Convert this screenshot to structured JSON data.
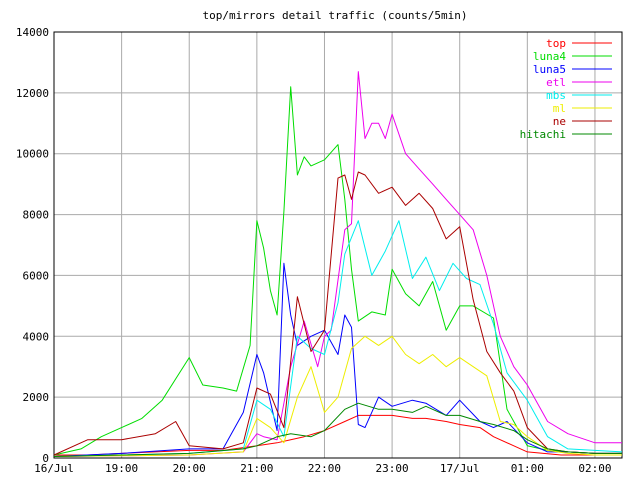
{
  "chart_data": {
    "type": "line",
    "title": "top/mirrors detail traffic (counts/5min)",
    "xlabel": "",
    "ylabel": "",
    "x_ticks": [
      "16/Jul",
      "19:00",
      "20:00",
      "21:00",
      "22:00",
      "23:00",
      "17/Jul",
      "01:00",
      "02:00"
    ],
    "y_ticks": [
      "0",
      "2000",
      "4000",
      "6000",
      "8000",
      "10000",
      "12000",
      "14000"
    ],
    "xlim": [
      18.0,
      26.4
    ],
    "ylim": [
      0,
      14000
    ],
    "grid": true,
    "legend_position": "top-right",
    "series": [
      {
        "name": "top",
        "color": "#ff0000",
        "x": [
          18.0,
          18.5,
          19.0,
          19.5,
          20.0,
          20.5,
          21.0,
          21.3,
          21.5,
          21.7,
          22.0,
          22.3,
          22.5,
          22.8,
          23.0,
          23.3,
          23.5,
          23.8,
          24.0,
          24.3,
          24.5,
          24.8,
          25.0,
          25.5,
          26.0,
          26.4
        ],
        "y": [
          100,
          100,
          150,
          200,
          250,
          250,
          400,
          500,
          600,
          700,
          900,
          1200,
          1400,
          1400,
          1400,
          1300,
          1300,
          1200,
          1100,
          1000,
          700,
          400,
          200,
          100,
          100,
          100
        ]
      },
      {
        "name": "luna4",
        "color": "#00dd00",
        "x": [
          18.0,
          18.4,
          18.7,
          19.0,
          19.3,
          19.6,
          19.8,
          20.0,
          20.2,
          20.5,
          20.7,
          20.9,
          21.0,
          21.1,
          21.2,
          21.3,
          21.4,
          21.5,
          21.6,
          21.7,
          21.8,
          22.0,
          22.2,
          22.3,
          22.4,
          22.5,
          22.7,
          22.9,
          23.0,
          23.2,
          23.4,
          23.6,
          23.8,
          24.0,
          24.2,
          24.5,
          24.7,
          25.0,
          25.3,
          25.6,
          26.0,
          26.4
        ],
        "y": [
          100,
          300,
          700,
          1000,
          1300,
          1900,
          2600,
          3300,
          2400,
          2300,
          2200,
          3700,
          7800,
          6900,
          5500,
          4700,
          8100,
          12200,
          9300,
          9900,
          9600,
          9800,
          10300,
          8500,
          6200,
          4500,
          4800,
          4700,
          6200,
          5400,
          5000,
          5800,
          4200,
          5000,
          5000,
          4600,
          1600,
          400,
          250,
          200,
          150,
          150
        ]
      },
      {
        "name": "luna5",
        "color": "#0000ff",
        "x": [
          18.0,
          19.0,
          20.0,
          20.5,
          20.8,
          21.0,
          21.1,
          21.3,
          21.4,
          21.5,
          21.6,
          21.8,
          22.0,
          22.2,
          22.3,
          22.4,
          22.5,
          22.6,
          22.8,
          23.0,
          23.3,
          23.5,
          23.8,
          24.0,
          24.3,
          24.5,
          24.7,
          25.0,
          25.3,
          25.6,
          26.0,
          26.4
        ],
        "y": [
          50,
          150,
          300,
          300,
          1500,
          3400,
          2800,
          900,
          6400,
          4700,
          3700,
          4000,
          4200,
          3400,
          4700,
          4300,
          1100,
          1000,
          2000,
          1700,
          1900,
          1800,
          1400,
          1900,
          1200,
          1000,
          1200,
          500,
          200,
          200,
          150,
          150
        ]
      },
      {
        "name": "etl",
        "color": "#ee00ee",
        "x": [
          18.0,
          20.0,
          20.8,
          21.0,
          21.1,
          21.3,
          21.5,
          21.7,
          21.9,
          22.0,
          22.1,
          22.3,
          22.4,
          22.5,
          22.6,
          22.7,
          22.8,
          22.9,
          23.0,
          23.2,
          23.4,
          23.6,
          23.8,
          24.0,
          24.2,
          24.4,
          24.6,
          24.8,
          25.0,
          25.3,
          25.6,
          26.0,
          26.4
        ],
        "y": [
          50,
          100,
          200,
          800,
          700,
          600,
          3000,
          4500,
          3000,
          4000,
          4200,
          7500,
          7700,
          12700,
          10500,
          11000,
          11000,
          10500,
          11300,
          10000,
          9500,
          9000,
          8500,
          8000,
          7500,
          6000,
          4000,
          3000,
          2400,
          1200,
          800,
          500,
          500
        ]
      },
      {
        "name": "mbs",
        "color": "#00eeee",
        "x": [
          18.0,
          20.0,
          20.8,
          21.0,
          21.2,
          21.4,
          21.6,
          21.8,
          22.0,
          22.2,
          22.3,
          22.5,
          22.7,
          22.9,
          23.1,
          23.3,
          23.5,
          23.7,
          23.9,
          24.1,
          24.3,
          24.5,
          24.7,
          25.0,
          25.3,
          25.6,
          26.0,
          26.4
        ],
        "y": [
          50,
          150,
          300,
          1900,
          1600,
          700,
          4000,
          3600,
          3400,
          5100,
          6700,
          7800,
          6000,
          6800,
          7800,
          5900,
          6600,
          5500,
          6400,
          5900,
          5700,
          4400,
          2800,
          1900,
          700,
          300,
          250,
          200
        ]
      },
      {
        "name": "ml",
        "color": "#eeee00",
        "x": [
          18.0,
          20.0,
          20.8,
          21.0,
          21.2,
          21.4,
          21.6,
          21.8,
          22.0,
          22.2,
          22.4,
          22.6,
          22.8,
          23.0,
          23.2,
          23.4,
          23.6,
          23.8,
          24.0,
          24.2,
          24.4,
          24.6,
          24.8,
          25.0,
          25.3,
          25.6,
          26.0,
          26.4
        ],
        "y": [
          50,
          100,
          200,
          1300,
          1000,
          500,
          2000,
          3000,
          1500,
          2000,
          3600,
          4000,
          3700,
          4000,
          3400,
          3100,
          3400,
          3000,
          3300,
          3000,
          2700,
          1200,
          1100,
          700,
          250,
          150,
          100,
          100
        ]
      },
      {
        "name": "ne",
        "color": "#aa0000",
        "x": [
          18.0,
          18.5,
          19.0,
          19.5,
          19.8,
          20.0,
          20.5,
          20.8,
          21.0,
          21.2,
          21.4,
          21.6,
          21.8,
          22.0,
          22.2,
          22.3,
          22.4,
          22.5,
          22.6,
          22.8,
          23.0,
          23.2,
          23.4,
          23.6,
          23.8,
          24.0,
          24.2,
          24.4,
          24.6,
          24.8,
          25.0,
          25.3,
          25.6,
          26.0,
          26.4
        ],
        "y": [
          100,
          600,
          600,
          800,
          1200,
          400,
          300,
          500,
          2300,
          2100,
          1000,
          5300,
          3500,
          4200,
          9200,
          9300,
          8500,
          9400,
          9300,
          8700,
          8900,
          8300,
          8700,
          8200,
          7200,
          7600,
          5200,
          3500,
          2800,
          2200,
          1000,
          300,
          200,
          150,
          150
        ]
      },
      {
        "name": "hitachi",
        "color": "#008800",
        "x": [
          18.0,
          19.0,
          20.0,
          20.8,
          21.0,
          21.3,
          21.5,
          21.8,
          22.0,
          22.3,
          22.5,
          22.8,
          23.0,
          23.3,
          23.5,
          23.8,
          24.0,
          24.3,
          24.5,
          24.8,
          25.0,
          25.3,
          25.6,
          26.0,
          26.4
        ],
        "y": [
          50,
          100,
          150,
          300,
          400,
          700,
          800,
          700,
          900,
          1600,
          1800,
          1600,
          1600,
          1500,
          1700,
          1400,
          1400,
          1200,
          1100,
          900,
          600,
          300,
          200,
          150,
          150
        ]
      }
    ]
  }
}
